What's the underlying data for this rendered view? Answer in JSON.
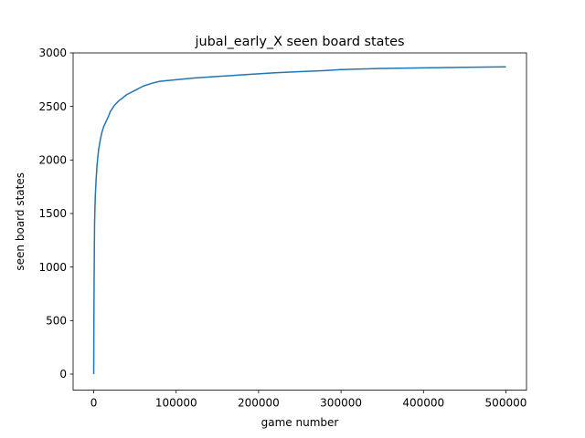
{
  "chart_data": {
    "type": "line",
    "title": "jubal_early_X seen board states",
    "xlabel": "game number",
    "ylabel": "seen board states",
    "xlim": [
      -25000,
      525000
    ],
    "ylim": [
      -150,
      3000
    ],
    "grid": false,
    "legend": "none",
    "x_ticks": [
      {
        "value": 0,
        "label": "0"
      },
      {
        "value": 100000,
        "label": "100000"
      },
      {
        "value": 200000,
        "label": "200000"
      },
      {
        "value": 300000,
        "label": "300000"
      },
      {
        "value": 400000,
        "label": "400000"
      },
      {
        "value": 500000,
        "label": "500000"
      }
    ],
    "y_ticks": [
      {
        "value": 0,
        "label": "0"
      },
      {
        "value": 500,
        "label": "500"
      },
      {
        "value": 1000,
        "label": "1000"
      },
      {
        "value": 1500,
        "label": "1500"
      },
      {
        "value": 2000,
        "label": "2000"
      },
      {
        "value": 2500,
        "label": "2500"
      },
      {
        "value": 3000,
        "label": "3000"
      }
    ],
    "series": [
      {
        "color": "#1f77b4",
        "x": [
          0,
          200,
          500,
          1000,
          1500,
          2000,
          3000,
          4000,
          5000,
          6000,
          8000,
          10000,
          12000,
          15000,
          18000,
          20000,
          25000,
          30000,
          40000,
          50000,
          60000,
          70000,
          80000,
          100000,
          120000,
          150000,
          180000,
          200000,
          220000,
          250000,
          280000,
          300000,
          350000,
          400000,
          450000,
          500000
        ],
        "y": [
          0,
          500,
          900,
          1400,
          1560,
          1680,
          1830,
          1950,
          2030,
          2100,
          2190,
          2260,
          2310,
          2360,
          2410,
          2450,
          2510,
          2550,
          2610,
          2650,
          2690,
          2715,
          2735,
          2750,
          2765,
          2780,
          2795,
          2805,
          2815,
          2825,
          2835,
          2845,
          2855,
          2860,
          2866,
          2870
        ]
      }
    ]
  }
}
